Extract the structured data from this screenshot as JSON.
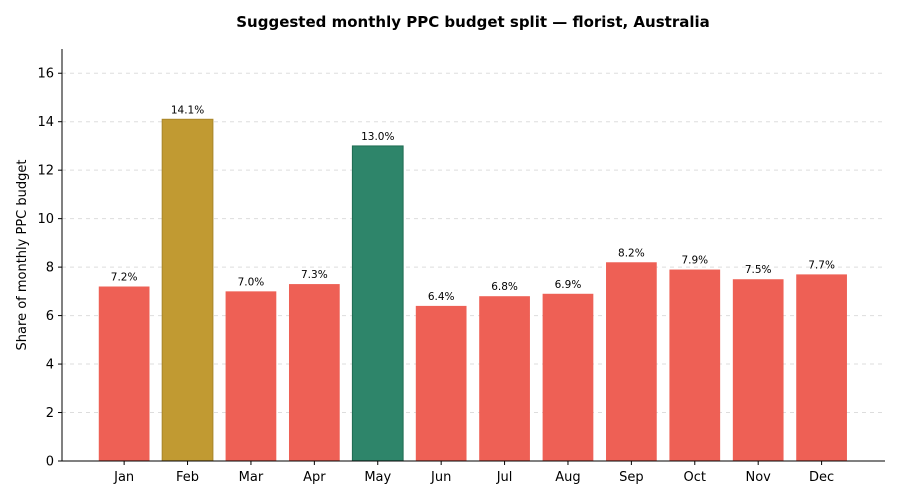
{
  "chart_data": {
    "type": "bar",
    "title": "Suggested monthly PPC budget split — florist, Australia",
    "xlabel": "",
    "ylabel": "Share of monthly PPC budget",
    "categories": [
      "Jan",
      "Feb",
      "Mar",
      "Apr",
      "May",
      "Jun",
      "Jul",
      "Aug",
      "Sep",
      "Oct",
      "Nov",
      "Dec"
    ],
    "values": [
      7.2,
      14.1,
      7.0,
      7.3,
      13.0,
      6.4,
      6.8,
      6.9,
      8.2,
      7.9,
      7.5,
      7.7
    ],
    "data_labels": [
      "7.2%",
      "14.1%",
      "7.0%",
      "7.3%",
      "13.0%",
      "6.4%",
      "6.8%",
      "6.9%",
      "8.2%",
      "7.9%",
      "7.5%",
      "7.7%"
    ],
    "ylim": [
      0,
      17
    ],
    "yticks": [
      0,
      2,
      4,
      6,
      8,
      10,
      12,
      14,
      16
    ],
    "grid": "horizontal dashed",
    "colors": {
      "default": "#ee6055",
      "Feb": "#c19a32",
      "May": "#2e856a"
    }
  }
}
